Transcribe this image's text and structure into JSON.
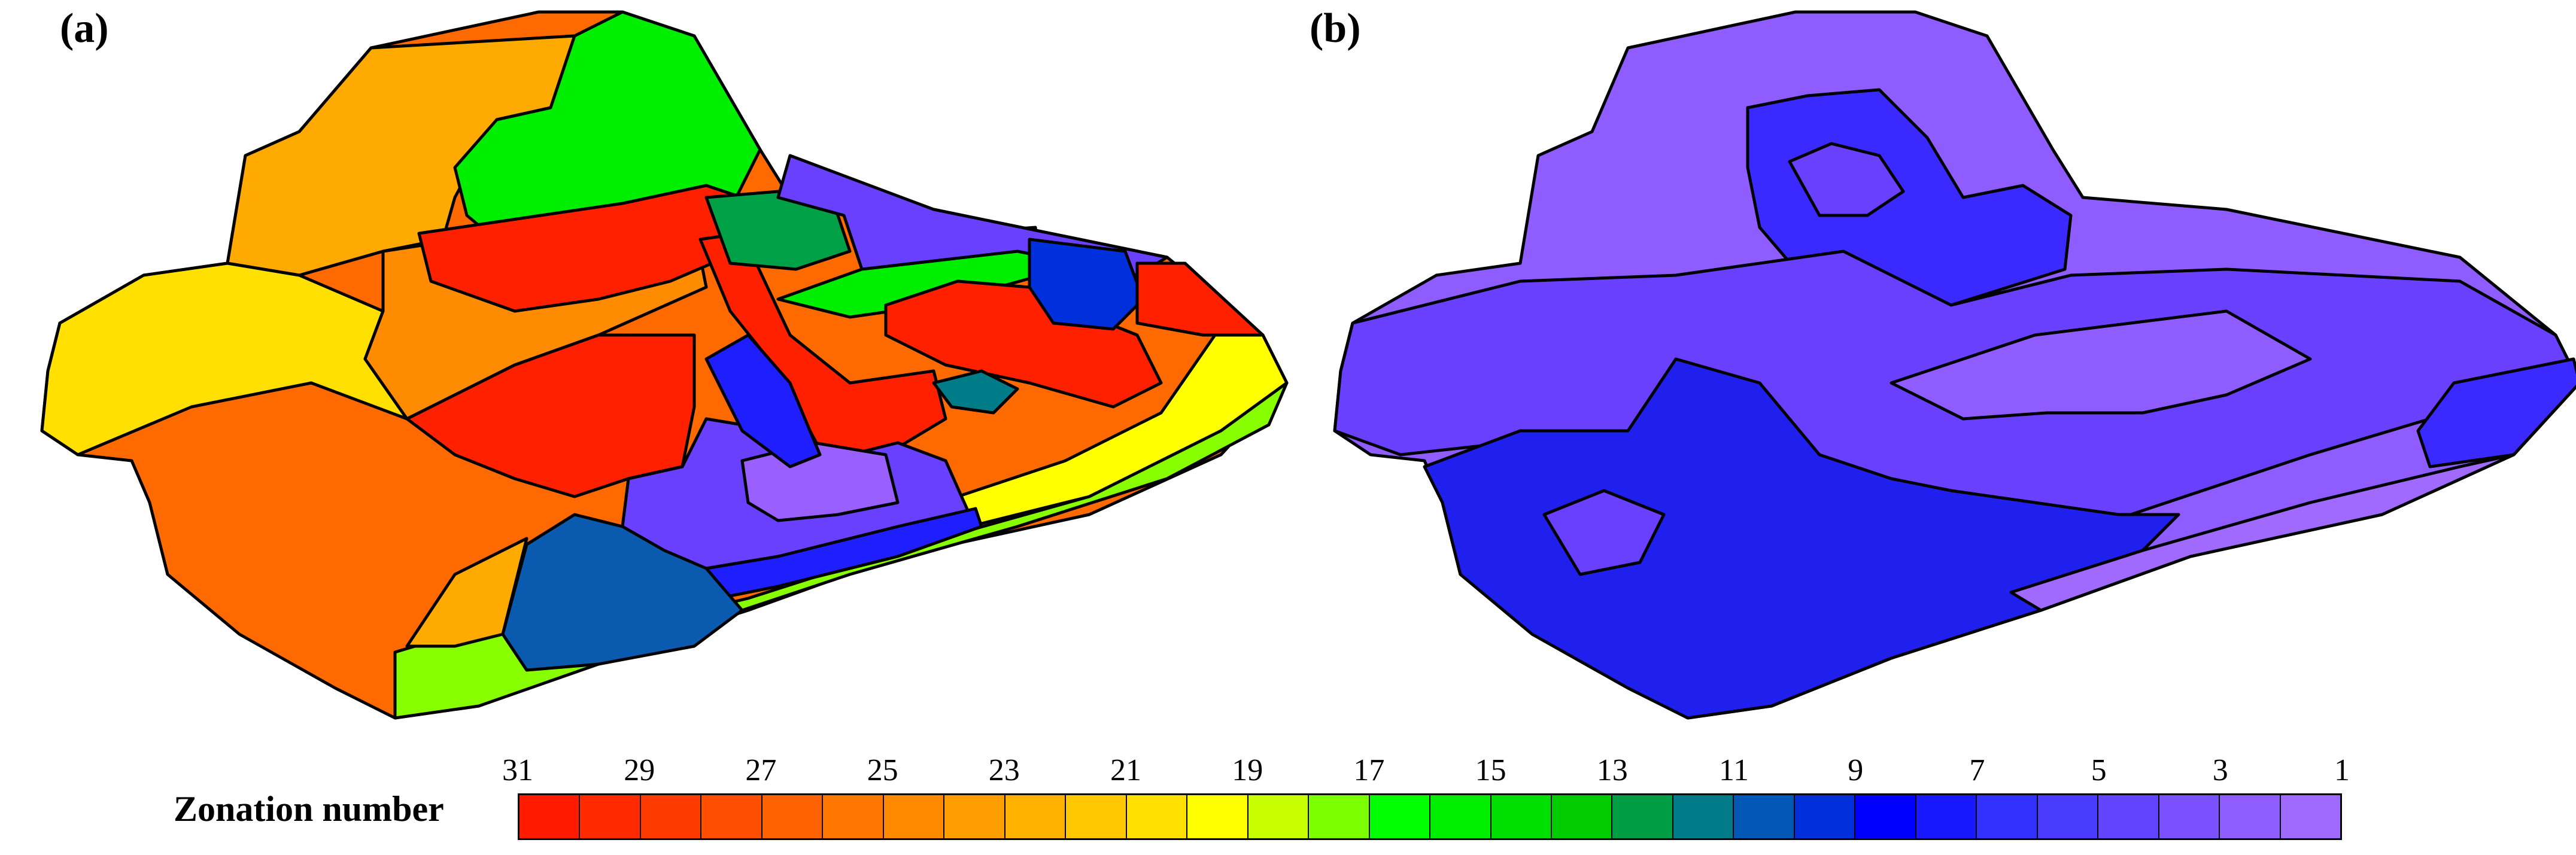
{
  "panels": {
    "a": {
      "label": "(a)"
    },
    "b": {
      "label": "(b)"
    }
  },
  "legend": {
    "title": "Zonation number",
    "tick_labels": [
      "31",
      "29",
      "27",
      "25",
      "23",
      "21",
      "19",
      "17",
      "15",
      "13",
      "11",
      "9",
      "7",
      "5",
      "3",
      "1"
    ],
    "colors": [
      "#ff1a00",
      "#ff2a00",
      "#ff3a00",
      "#ff4e00",
      "#ff6200",
      "#ff7600",
      "#ff8a00",
      "#ff9e00",
      "#ffb200",
      "#ffc800",
      "#ffe000",
      "#ffff00",
      "#c8ff00",
      "#7cff00",
      "#00ff00",
      "#00ee00",
      "#00e000",
      "#00cc00",
      "#009e44",
      "#007c88",
      "#0058b4",
      "#0030dc",
      "#0000ff",
      "#1818ff",
      "#3030ff",
      "#4a3cff",
      "#6244ff",
      "#7a50ff",
      "#8e5cff",
      "#a06aff"
    ]
  },
  "map_a": {
    "zone_colors": {
      "orange_light": "#ffaa00",
      "orange": "#ff6a00",
      "orange_mid": "#ff8c00",
      "yellow": "#ffe000",
      "yellow_bright": "#ffff00",
      "lime": "#88ff00",
      "green": "#00ee00",
      "green_dark": "#00a046",
      "red": "#ff2000",
      "blue_dark": "#0a5ab0",
      "blue": "#0030dc",
      "blue_royal": "#1e1eff",
      "violet": "#6a40ff",
      "lavender": "#9a60ff",
      "teal": "#007c88"
    }
  },
  "map_b": {
    "zone_colors": {
      "violet_light": "#8e5cff",
      "violet": "#6a40ff",
      "blue": "#3a2aff",
      "blue_deep": "#2020ee",
      "lavender": "#a06aff"
    }
  }
}
